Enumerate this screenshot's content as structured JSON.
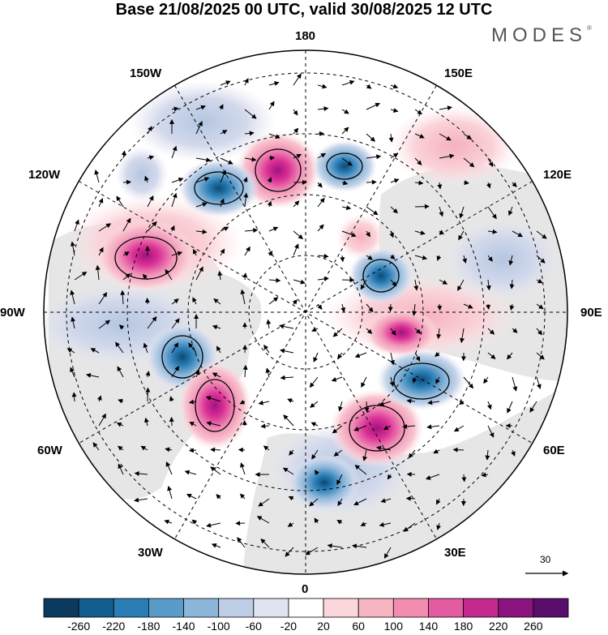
{
  "title": "Base 21/08/2025 00 UTC, valid 30/08/2025 12 UTC",
  "brand": "MODES",
  "brand_mark": "®",
  "longitude_labels": [
    "180",
    "150E",
    "120E",
    "90E",
    "60E",
    "30E",
    "0",
    "30W",
    "60W",
    "90W",
    "120W",
    "150W"
  ],
  "wind_reference": {
    "label": "30",
    "icon": "arrow-right-icon"
  },
  "colorbar": {
    "ticks": [
      "-260",
      "-220",
      "-180",
      "-140",
      "-100",
      "-60",
      "-20",
      "20",
      "60",
      "100",
      "140",
      "180",
      "220",
      "260"
    ],
    "colors": [
      "#0b3a5e",
      "#135e8f",
      "#2a7db5",
      "#5a9cc9",
      "#8db7da",
      "#bccde5",
      "#e2e3f0",
      "#ffffff",
      "#fbd6da",
      "#f7b4c2",
      "#f28cb0",
      "#e35ba0",
      "#c42a8e",
      "#8a137d",
      "#5a0d6b"
    ]
  },
  "colors": {
    "land": "#e6e6e6",
    "ocean": "#ffffff",
    "grid": "#000000",
    "positive_anomaly": "#d5288f",
    "negative_anomaly": "#1f6fa8"
  }
}
